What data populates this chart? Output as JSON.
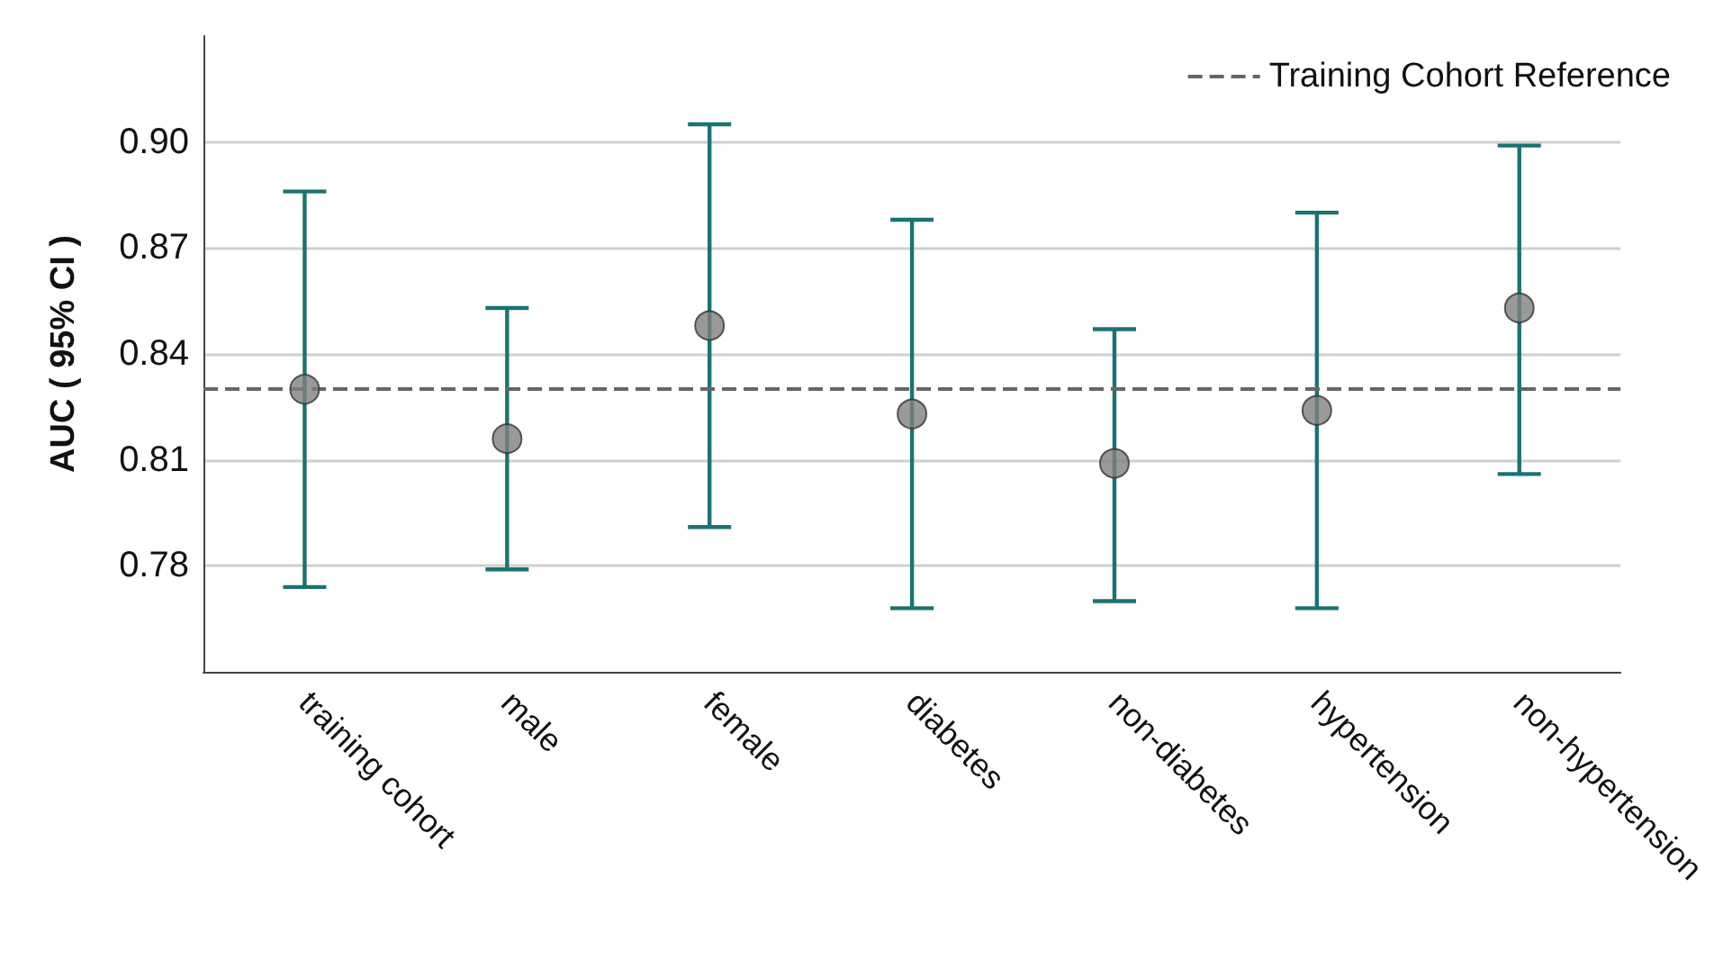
{
  "chart_data": {
    "type": "scatter",
    "ylabel": "AUC ( 95% CI )",
    "categories": [
      "training cohort",
      "male",
      "female",
      "diabetes",
      "non-diabetes",
      "hypertension",
      "non-hypertension"
    ],
    "values": [
      0.83,
      0.816,
      0.848,
      0.823,
      0.809,
      0.824,
      0.853
    ],
    "errors": [
      [
        0.774,
        0.886
      ],
      [
        0.779,
        0.853
      ],
      [
        0.791,
        0.905
      ],
      [
        0.768,
        0.878
      ],
      [
        0.77,
        0.847
      ],
      [
        0.768,
        0.88
      ],
      [
        0.806,
        0.899
      ]
    ],
    "color": "#808080",
    "ylim": [
      0.75,
      0.93
    ],
    "yticks": [
      0.78,
      0.81,
      0.84,
      0.87,
      {
        "value": 0.9,
        "label": "0.90"
      }
    ],
    "ref_lines": [
      {
        "axis": "y",
        "value": 0.83,
        "label": "Training Cohort Reference",
        "color": "#666666",
        "line_style": "dashed"
      }
    ],
    "grid": "y",
    "legend": "top right",
    "marker": "circle"
  }
}
